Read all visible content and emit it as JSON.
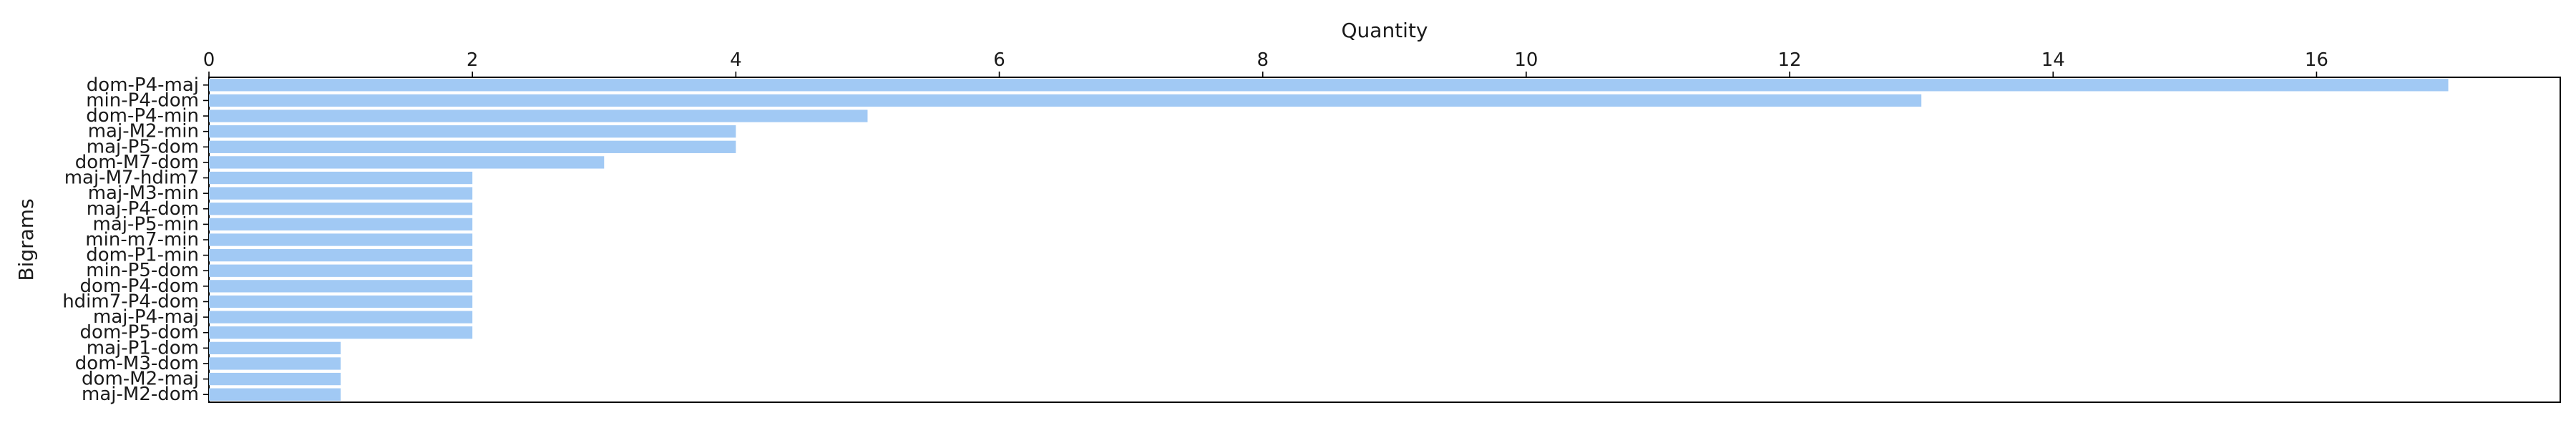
{
  "chart_data": {
    "type": "bar",
    "orientation": "horizontal",
    "categories": [
      "dom-P4-maj",
      "min-P4-dom",
      "dom-P4-min",
      "maj-M2-min",
      "maj-P5-dom",
      "dom-M7-dom",
      "maj-M7-hdim7",
      "maj-M3-min",
      "maj-P4-dom",
      "maj-P5-min",
      "min-m7-min",
      "dom-P1-min",
      "min-P5-dom",
      "dom-P4-dom",
      "hdim7-P4-dom",
      "maj-P4-maj",
      "dom-P5-dom",
      "maj-P1-dom",
      "dom-M3-dom",
      "dom-M2-maj",
      "maj-M2-dom"
    ],
    "values": [
      17,
      13,
      5,
      4,
      4,
      3,
      2,
      2,
      2,
      2,
      2,
      2,
      2,
      2,
      2,
      2,
      2,
      1,
      1,
      1,
      1
    ],
    "xlabel": "Quantity",
    "ylabel": "Bigrams",
    "xlim": [
      0,
      17.85
    ],
    "xticks": [
      0,
      2,
      4,
      6,
      8,
      10,
      12,
      14,
      16
    ],
    "x_axis_position": "top",
    "grid": false,
    "bar_color": "#a1c9f4"
  }
}
